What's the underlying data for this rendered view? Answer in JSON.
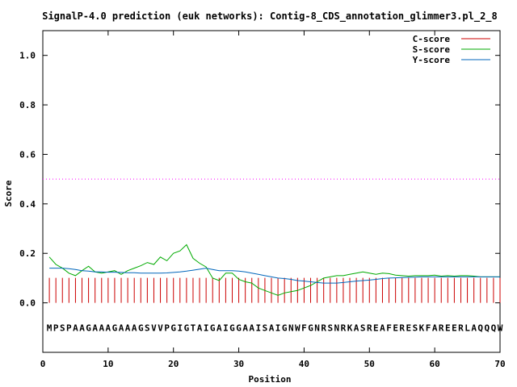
{
  "chart_data": {
    "type": "line",
    "title": "SignalP-4.0 prediction (euk networks): Contig-8_CDS_annotation_glimmer3.pl_2_8",
    "xlabel": "Position",
    "ylabel": "Score",
    "xlim": [
      0,
      70
    ],
    "ylim": [
      -0.2,
      1.1
    ],
    "x_ticks": [
      "0",
      "10",
      "20",
      "30",
      "40",
      "50",
      "60",
      "70"
    ],
    "y_ticks": [
      "0.0",
      "0.2",
      "0.4",
      "0.6",
      "0.8",
      "1.0"
    ],
    "x_tick_values": [
      0,
      10,
      20,
      30,
      40,
      50,
      60,
      70
    ],
    "y_tick_values": [
      0.0,
      0.2,
      0.4,
      0.6,
      0.8,
      1.0
    ],
    "threshold": 0.5,
    "threshold_color": "#ff00ff",
    "sequence": "MPSPAAGAAAGAAAGSVVPGIGTAIGAIGGAAISAIGNWFGNRSNRKASREAFERESKFAREERLAQQQW",
    "legend_position": "top-right",
    "grid": false,
    "series": [
      {
        "name": "C-score",
        "style": "impulses",
        "color": "#cc0000",
        "values": [
          0.101,
          0.101,
          0.101,
          0.101,
          0.101,
          0.101,
          0.101,
          0.101,
          0.101,
          0.101,
          0.101,
          0.101,
          0.101,
          0.101,
          0.101,
          0.101,
          0.101,
          0.101,
          0.101,
          0.101,
          0.101,
          0.101,
          0.101,
          0.101,
          0.101,
          0.101,
          0.101,
          0.101,
          0.101,
          0.101,
          0.101,
          0.101,
          0.101,
          0.101,
          0.101,
          0.101,
          0.101,
          0.101,
          0.101,
          0.101,
          0.101,
          0.101,
          0.101,
          0.101,
          0.101,
          0.101,
          0.101,
          0.101,
          0.101,
          0.101,
          0.101,
          0.101,
          0.101,
          0.101,
          0.101,
          0.101,
          0.101,
          0.101,
          0.101,
          0.101,
          0.101,
          0.101,
          0.101,
          0.101,
          0.101,
          0.101,
          0.101,
          0.101,
          0.101,
          0.101
        ]
      },
      {
        "name": "S-score",
        "style": "line",
        "color": "#00aa00",
        "values": [
          0.185,
          0.155,
          0.14,
          0.12,
          0.11,
          0.13,
          0.148,
          0.125,
          0.12,
          0.125,
          0.13,
          0.115,
          0.13,
          0.14,
          0.15,
          0.163,
          0.155,
          0.185,
          0.17,
          0.2,
          0.21,
          0.235,
          0.18,
          0.16,
          0.145,
          0.1,
          0.09,
          0.12,
          0.12,
          0.095,
          0.085,
          0.08,
          0.06,
          0.05,
          0.04,
          0.03,
          0.04,
          0.045,
          0.05,
          0.06,
          0.07,
          0.085,
          0.1,
          0.105,
          0.11,
          0.11,
          0.115,
          0.12,
          0.125,
          0.12,
          0.115,
          0.12,
          0.118,
          0.112,
          0.11,
          0.108,
          0.11,
          0.11,
          0.11,
          0.112,
          0.108,
          0.11,
          0.108,
          0.11,
          0.11,
          0.108,
          0.105,
          0.105,
          0.105,
          0.105
        ]
      },
      {
        "name": "Y-score",
        "style": "line",
        "color": "#0066bb",
        "values": [
          0.14,
          0.14,
          0.14,
          0.138,
          0.135,
          0.13,
          0.128,
          0.125,
          0.125,
          0.124,
          0.124,
          0.123,
          0.122,
          0.122,
          0.12,
          0.12,
          0.12,
          0.12,
          0.121,
          0.123,
          0.125,
          0.128,
          0.132,
          0.136,
          0.14,
          0.135,
          0.13,
          0.13,
          0.13,
          0.128,
          0.125,
          0.12,
          0.115,
          0.11,
          0.105,
          0.1,
          0.098,
          0.095,
          0.09,
          0.088,
          0.085,
          0.082,
          0.08,
          0.08,
          0.08,
          0.082,
          0.085,
          0.088,
          0.09,
          0.092,
          0.095,
          0.098,
          0.1,
          0.101,
          0.102,
          0.103,
          0.104,
          0.105,
          0.105,
          0.105,
          0.105,
          0.105,
          0.105,
          0.105,
          0.105,
          0.105,
          0.105,
          0.105,
          0.105,
          0.105
        ]
      }
    ]
  }
}
